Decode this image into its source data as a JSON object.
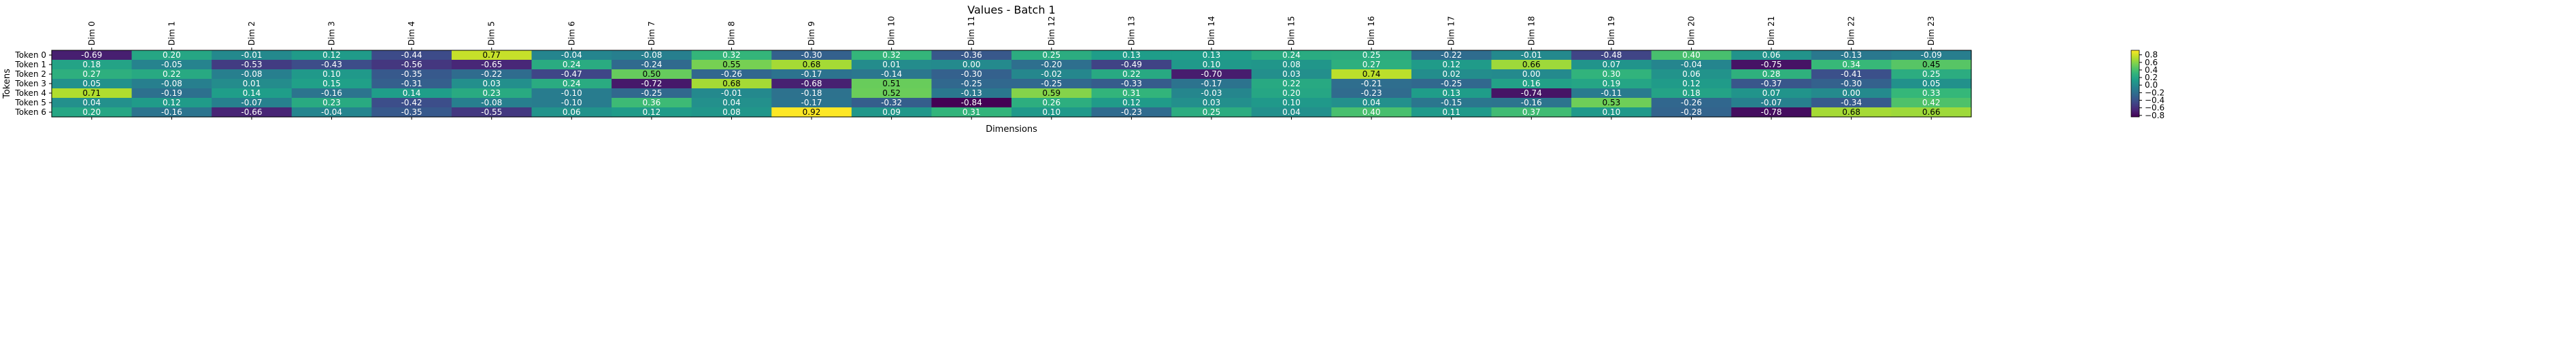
{
  "chart_data": {
    "type": "heatmap",
    "title": "Values - Batch 1",
    "xlabel": "Dimensions",
    "ylabel": "Tokens",
    "x_categories": [
      "Dim 0",
      "Dim 1",
      "Dim 2",
      "Dim 3",
      "Dim 4",
      "Dim 5",
      "Dim 6",
      "Dim 7",
      "Dim 8",
      "Dim 9",
      "Dim 10",
      "Dim 11",
      "Dim 12",
      "Dim 13",
      "Dim 14",
      "Dim 15",
      "Dim 16",
      "Dim 17",
      "Dim 18",
      "Dim 19",
      "Dim 20",
      "Dim 21",
      "Dim 22",
      "Dim 23"
    ],
    "y_categories": [
      "Token 0",
      "Token 1",
      "Token 2",
      "Token 3",
      "Token 4",
      "Token 5",
      "Token 6"
    ],
    "values": [
      [
        -0.69,
        0.2,
        -0.01,
        0.12,
        -0.44,
        0.77,
        -0.04,
        -0.08,
        0.32,
        -0.3,
        0.32,
        -0.36,
        0.25,
        0.13,
        0.13,
        0.24,
        0.25,
        -0.22,
        -0.01,
        -0.48,
        0.4,
        0.06,
        -0.13,
        -0.09
      ],
      [
        0.18,
        -0.05,
        -0.53,
        -0.43,
        -0.56,
        -0.65,
        0.24,
        -0.24,
        0.55,
        0.68,
        0.01,
        0.0,
        -0.2,
        -0.49,
        0.1,
        0.08,
        0.27,
        0.12,
        0.66,
        0.07,
        -0.04,
        -0.75,
        0.34,
        0.45
      ],
      [
        0.27,
        0.22,
        -0.08,
        0.1,
        -0.35,
        -0.22,
        -0.47,
        0.5,
        -0.26,
        -0.17,
        -0.14,
        -0.3,
        -0.02,
        0.22,
        -0.7,
        0.03,
        0.74,
        0.02,
        0.0,
        0.3,
        0.06,
        0.28,
        -0.41,
        0.25
      ],
      [
        0.05,
        -0.08,
        0.01,
        0.15,
        -0.31,
        0.03,
        0.24,
        -0.72,
        0.68,
        -0.68,
        0.51,
        -0.25,
        -0.25,
        -0.33,
        -0.17,
        0.22,
        -0.21,
        -0.25,
        0.16,
        0.19,
        0.12,
        -0.37,
        -0.3,
        0.05
      ],
      [
        0.71,
        -0.19,
        0.14,
        -0.16,
        0.14,
        0.23,
        -0.1,
        -0.25,
        -0.01,
        -0.18,
        0.52,
        -0.13,
        0.59,
        0.31,
        -0.03,
        0.2,
        -0.23,
        0.13,
        -0.74,
        -0.11,
        0.18,
        0.07,
        0.0,
        0.33
      ],
      [
        0.04,
        0.12,
        -0.07,
        0.23,
        -0.42,
        -0.08,
        -0.1,
        0.36,
        0.04,
        -0.17,
        -0.32,
        -0.84,
        0.26,
        0.12,
        0.03,
        0.1,
        0.04,
        -0.15,
        -0.16,
        0.53,
        -0.26,
        -0.07,
        -0.34,
        0.42
      ],
      [
        0.2,
        -0.16,
        -0.66,
        -0.04,
        -0.35,
        -0.55,
        0.06,
        0.12,
        0.08,
        0.92,
        0.09,
        0.31,
        0.1,
        -0.23,
        0.25,
        0.04,
        0.4,
        0.11,
        0.37,
        0.1,
        -0.28,
        -0.78,
        0.68,
        0.66
      ]
    ],
    "vmin": -0.84,
    "vmax": 0.92,
    "colormap": "viridis",
    "colorbar_ticks": [
      -0.8,
      -0.6,
      -0.4,
      -0.2,
      0.0,
      0.2,
      0.4,
      0.6,
      0.8
    ],
    "colorbar_tick_labels": [
      "−0.8",
      "−0.6",
      "−0.4",
      "−0.2",
      "0.0",
      "0.2",
      "0.4",
      "0.6",
      "0.8"
    ],
    "grid": false,
    "legend": "colorbar-right"
  }
}
